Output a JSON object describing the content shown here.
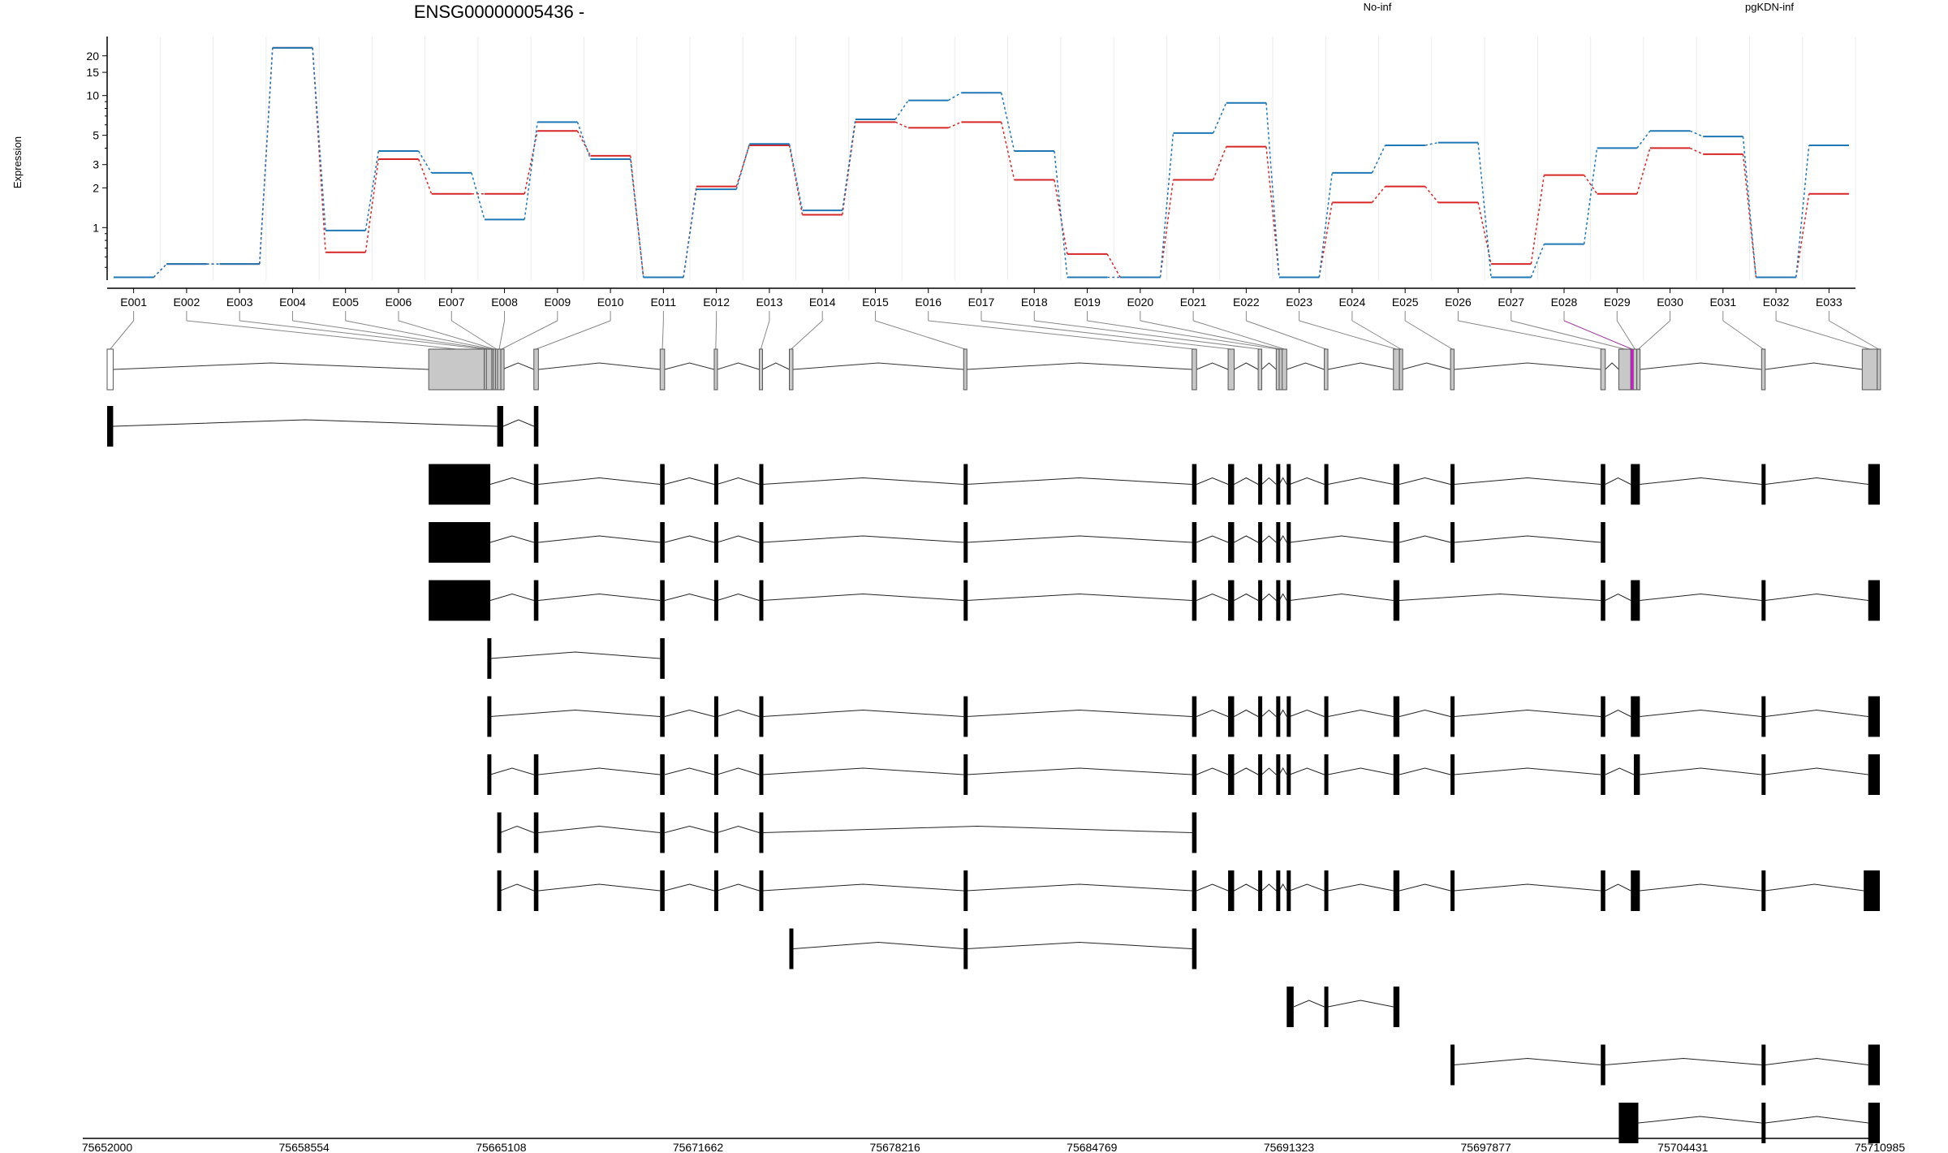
{
  "chart_data": {
    "type": "line",
    "title": "ENSG00000005436 -",
    "ylabel": "Expression",
    "yscale": "log",
    "ylim": [
      0.4,
      28
    ],
    "yticks": [
      1,
      2,
      3,
      5,
      10,
      15,
      20
    ],
    "grid": "vertical",
    "legend_placement": "top-right",
    "colors": {
      "No-inf": "#d62728",
      "pgKDN-inf": "#1f77b4",
      "highlight_exon": "#ff00ff",
      "exon_fill": "#c8c8c8"
    },
    "categories": [
      "E001",
      "E002",
      "E003",
      "E004",
      "E005",
      "E006",
      "E007",
      "E008",
      "E009",
      "E010",
      "E011",
      "E012",
      "E013",
      "E014",
      "E015",
      "E016",
      "E017",
      "E018",
      "E019",
      "E020",
      "E021",
      "E022",
      "E023",
      "E024",
      "E025",
      "E026",
      "E027",
      "E028",
      "E029",
      "E030",
      "E031",
      "E032",
      "E033"
    ],
    "series": [
      {
        "name": "No-inf",
        "color": "#d62728",
        "values": [
          0.42,
          0.53,
          0.53,
          23,
          0.65,
          3.3,
          1.8,
          1.8,
          5.4,
          3.5,
          0.42,
          2.05,
          4.2,
          1.25,
          6.3,
          5.7,
          6.3,
          2.3,
          0.63,
          0.42,
          2.3,
          4.1,
          0.42,
          1.55,
          2.05,
          1.55,
          0.53,
          2.5,
          1.8,
          4.0,
          3.6,
          0.42,
          1.8
        ]
      },
      {
        "name": "pgKDN-inf",
        "color": "#1f77b4",
        "values": [
          0.42,
          0.53,
          0.53,
          23,
          0.95,
          3.8,
          2.6,
          1.15,
          6.3,
          3.3,
          0.42,
          1.95,
          4.3,
          1.35,
          6.6,
          9.2,
          10.5,
          3.8,
          0.42,
          0.42,
          5.2,
          8.8,
          0.42,
          2.6,
          4.2,
          4.4,
          0.42,
          0.75,
          4.0,
          5.4,
          4.9,
          0.42,
          4.2
        ]
      }
    ],
    "genomic_axis": {
      "ticks": [
        "75652000",
        "75658554",
        "75665108",
        "75671662",
        "75678216",
        "75684769",
        "75691323",
        "75697877",
        "75704431",
        "75710985"
      ],
      "range": [
        75652000,
        75710985
      ]
    },
    "exons": [
      {
        "id": "E001",
        "start": 75652000,
        "end": 75652200
      },
      {
        "id": "E002",
        "start": 75662700,
        "end": 75664550
      },
      {
        "id": "E003",
        "start": 75664550,
        "end": 75664620
      },
      {
        "id": "E004",
        "start": 75664620,
        "end": 75664800
      },
      {
        "id": "E005",
        "start": 75664800,
        "end": 75664850
      },
      {
        "id": "E006",
        "start": 75664850,
        "end": 75664920
      },
      {
        "id": "E007",
        "start": 75664920,
        "end": 75664990
      },
      {
        "id": "E008",
        "start": 75664990,
        "end": 75665100
      },
      {
        "id": "E009",
        "start": 75665100,
        "end": 75665150
      },
      {
        "id": "E010",
        "start": 75666200,
        "end": 75666350
      },
      {
        "id": "E011",
        "start": 75670400,
        "end": 75670550
      },
      {
        "id": "E012",
        "start": 75672200,
        "end": 75672300
      },
      {
        "id": "E013",
        "start": 75673700,
        "end": 75673800
      },
      {
        "id": "E014",
        "start": 75674700,
        "end": 75674820
      },
      {
        "id": "E015",
        "start": 75680500,
        "end": 75680600
      },
      {
        "id": "E016",
        "start": 75688100,
        "end": 75688250
      },
      {
        "id": "E017",
        "start": 75689300,
        "end": 75689500
      },
      {
        "id": "E018",
        "start": 75690300,
        "end": 75690420
      },
      {
        "id": "E019",
        "start": 75690900,
        "end": 75691000
      },
      {
        "id": "E020",
        "start": 75691000,
        "end": 75691100
      },
      {
        "id": "E021",
        "start": 75691100,
        "end": 75691250
      },
      {
        "id": "E022",
        "start": 75692500,
        "end": 75692620
      },
      {
        "id": "E023",
        "start": 75694800,
        "end": 75695000
      },
      {
        "id": "E024",
        "start": 75695000,
        "end": 75695100
      },
      {
        "id": "E025",
        "start": 75696700,
        "end": 75696820
      },
      {
        "id": "E026",
        "start": 75701700,
        "end": 75701850
      },
      {
        "id": "E027",
        "start": 75702300,
        "end": 75702700
      },
      {
        "id": "E028",
        "start": 75702700,
        "end": 75702780
      },
      {
        "id": "E029",
        "start": 75702780,
        "end": 75702900
      },
      {
        "id": "E030",
        "start": 75702900,
        "end": 75703000
      },
      {
        "id": "E031",
        "start": 75707050,
        "end": 75707170
      },
      {
        "id": "E032",
        "start": 75710400,
        "end": 75710900
      },
      {
        "id": "E033",
        "start": 75710900,
        "end": 75710985
      }
    ],
    "highlight_exons": [
      "E028"
    ],
    "transcripts": [
      [
        [
          75652000,
          75652200
        ],
        [
          75664980,
          75665180
        ],
        [
          75666200,
          75666350
        ]
      ],
      [
        [
          75662700,
          75664750
        ],
        [
          75666200,
          75666350
        ],
        [
          75670400,
          75670550
        ],
        [
          75672200,
          75672300
        ],
        [
          75673700,
          75673800
        ],
        [
          75680500,
          75680600
        ],
        [
          75688100,
          75688250
        ],
        [
          75689300,
          75689500
        ],
        [
          75690300,
          75690420
        ],
        [
          75690900,
          75691000
        ],
        [
          75691250,
          75691350
        ],
        [
          75692500,
          75692620
        ],
        [
          75694800,
          75695000
        ],
        [
          75696700,
          75696820
        ],
        [
          75701700,
          75701850
        ],
        [
          75702700,
          75703000
        ],
        [
          75707050,
          75707170
        ],
        [
          75710600,
          75710985
        ]
      ],
      [
        [
          75662700,
          75664750
        ],
        [
          75666200,
          75666350
        ],
        [
          75670400,
          75670550
        ],
        [
          75672200,
          75672300
        ],
        [
          75673700,
          75673800
        ],
        [
          75680500,
          75680600
        ],
        [
          75688100,
          75688250
        ],
        [
          75689300,
          75689500
        ],
        [
          75690300,
          75690420
        ],
        [
          75690900,
          75691000
        ],
        [
          75691250,
          75691350
        ],
        [
          75694800,
          75695000
        ],
        [
          75696700,
          75696820
        ],
        [
          75701700,
          75701850
        ]
      ],
      [
        [
          75662700,
          75664750
        ],
        [
          75666200,
          75666350
        ],
        [
          75670400,
          75670550
        ],
        [
          75672200,
          75672300
        ],
        [
          75673700,
          75673800
        ],
        [
          75680500,
          75680600
        ],
        [
          75688100,
          75688250
        ],
        [
          75689300,
          75689500
        ],
        [
          75690300,
          75690420
        ],
        [
          75690900,
          75691000
        ],
        [
          75691250,
          75691350
        ],
        [
          75694800,
          75695000
        ],
        [
          75701700,
          75701850
        ],
        [
          75702700,
          75703000
        ],
        [
          75707050,
          75707170
        ],
        [
          75710600,
          75710985
        ]
      ],
      [
        [
          75664650,
          75664750
        ],
        [
          75670400,
          75670550
        ]
      ],
      [
        [
          75664650,
          75664750
        ],
        [
          75670400,
          75670550
        ],
        [
          75672200,
          75672300
        ],
        [
          75673700,
          75673800
        ],
        [
          75680500,
          75680600
        ],
        [
          75688100,
          75688250
        ],
        [
          75689300,
          75689500
        ],
        [
          75690300,
          75690420
        ],
        [
          75690900,
          75691000
        ],
        [
          75691250,
          75691350
        ],
        [
          75692500,
          75692620
        ],
        [
          75694800,
          75695000
        ],
        [
          75696700,
          75696820
        ],
        [
          75701700,
          75701850
        ],
        [
          75702700,
          75703000
        ],
        [
          75707050,
          75707170
        ],
        [
          75710600,
          75710985
        ]
      ],
      [
        [
          75664650,
          75664750
        ],
        [
          75666200,
          75666350
        ],
        [
          75670400,
          75670550
        ],
        [
          75672200,
          75672300
        ],
        [
          75673700,
          75673800
        ],
        [
          75680500,
          75680600
        ],
        [
          75688100,
          75688250
        ],
        [
          75689300,
          75689500
        ],
        [
          75690300,
          75690420
        ],
        [
          75690900,
          75691000
        ],
        [
          75691250,
          75691350
        ],
        [
          75692500,
          75692620
        ],
        [
          75694800,
          75695000
        ],
        [
          75696700,
          75696820
        ],
        [
          75701700,
          75701850
        ],
        [
          75702800,
          75703000
        ],
        [
          75707050,
          75707170
        ],
        [
          75710600,
          75710985
        ]
      ],
      [
        [
          75664980,
          75665080
        ],
        [
          75666200,
          75666350
        ],
        [
          75670400,
          75670550
        ],
        [
          75672200,
          75672300
        ],
        [
          75673700,
          75673800
        ],
        [
          75688100,
          75688250
        ]
      ],
      [
        [
          75664980,
          75665080
        ],
        [
          75666200,
          75666350
        ],
        [
          75670400,
          75670550
        ],
        [
          75672200,
          75672300
        ],
        [
          75673700,
          75673800
        ],
        [
          75680500,
          75680600
        ],
        [
          75688100,
          75688250
        ],
        [
          75689300,
          75689500
        ],
        [
          75690300,
          75690420
        ],
        [
          75690900,
          75691000
        ],
        [
          75691250,
          75691350
        ],
        [
          75692500,
          75692620
        ],
        [
          75694800,
          75695000
        ],
        [
          75696700,
          75696820
        ],
        [
          75701700,
          75701850
        ],
        [
          75702700,
          75703000
        ],
        [
          75707050,
          75707170
        ],
        [
          75710450,
          75710985
        ]
      ],
      [
        [
          75674700,
          75674820
        ],
        [
          75680500,
          75680600
        ],
        [
          75688100,
          75688250
        ]
      ],
      [
        [
          75691250,
          75691480
        ],
        [
          75692500,
          75692620
        ],
        [
          75694800,
          75695000
        ]
      ],
      [
        [
          75696700,
          75696820
        ],
        [
          75701700,
          75701850
        ],
        [
          75707050,
          75707170
        ],
        [
          75710600,
          75710985
        ]
      ],
      [
        [
          75702300,
          75702950
        ],
        [
          75707050,
          75707170
        ],
        [
          75710600,
          75710985
        ]
      ]
    ]
  }
}
